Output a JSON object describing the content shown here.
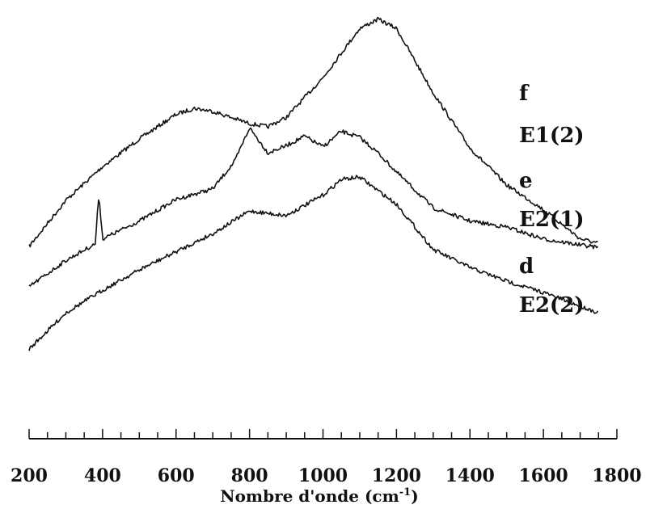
{
  "chart_data": {
    "type": "line",
    "title": "",
    "xlabel": "Nombre d'onde (cm",
    "xlabel_sup": "-1",
    "xlabel_close": ")",
    "ylabel": "",
    "xlim": [
      200,
      1800
    ],
    "x_ticks": [
      200,
      400,
      600,
      800,
      1000,
      1200,
      1400,
      1600,
      1800
    ],
    "grid": false,
    "series": [
      {
        "letter": "f",
        "name": "E1(2)",
        "x": [
          200,
          300,
          400,
          500,
          600,
          650,
          700,
          800,
          850,
          900,
          1000,
          1100,
          1150,
          1200,
          1300,
          1400,
          1500,
          1600,
          1700,
          1750
        ],
        "y": [
          0.0,
          0.3,
          0.52,
          0.7,
          0.86,
          0.9,
          0.88,
          0.8,
          0.78,
          0.84,
          1.1,
          1.42,
          1.48,
          1.42,
          1.0,
          0.64,
          0.4,
          0.24,
          0.05,
          0.02
        ]
      },
      {
        "letter": "e",
        "name": "E2(1)",
        "x": [
          200,
          300,
          380,
          390,
          400,
          500,
          600,
          700,
          760,
          800,
          850,
          900,
          950,
          1000,
          1050,
          1100,
          1150,
          1200,
          1300,
          1400,
          1500,
          1600,
          1700,
          1750
        ],
        "y": [
          0.0,
          0.22,
          0.36,
          0.78,
          0.4,
          0.55,
          0.73,
          0.82,
          1.05,
          1.33,
          1.12,
          1.18,
          1.26,
          1.17,
          1.3,
          1.25,
          1.12,
          0.96,
          0.66,
          0.55,
          0.5,
          0.4,
          0.35,
          0.33
        ]
      },
      {
        "letter": "d",
        "name": "E2(2)",
        "x": [
          200,
          300,
          400,
          500,
          600,
          700,
          800,
          850,
          900,
          1000,
          1050,
          1100,
          1150,
          1200,
          1250,
          1300,
          1400,
          1500,
          1600,
          1700,
          1750
        ],
        "y": [
          0.0,
          0.32,
          0.52,
          0.7,
          0.86,
          1.02,
          1.22,
          1.2,
          1.18,
          1.36,
          1.5,
          1.52,
          1.4,
          1.28,
          1.08,
          0.88,
          0.72,
          0.6,
          0.5,
          0.38,
          0.32
        ]
      }
    ]
  }
}
